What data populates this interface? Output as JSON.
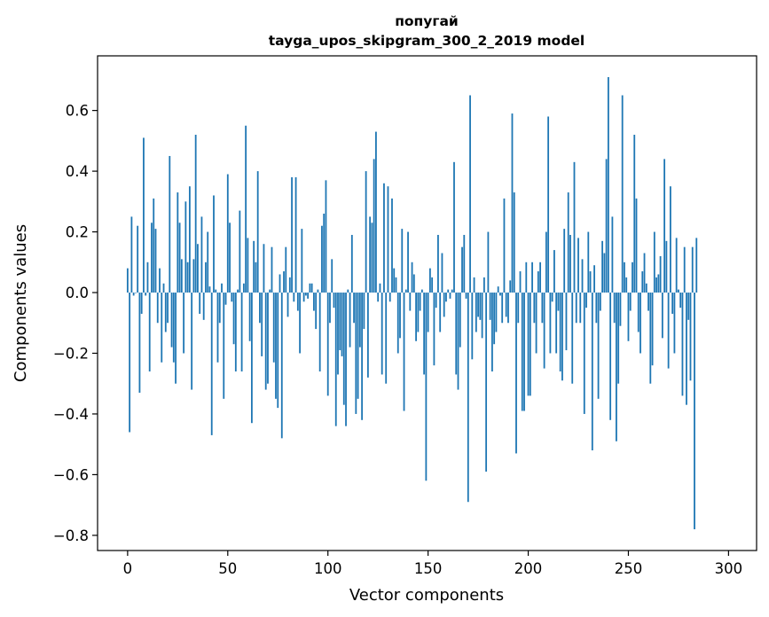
{
  "chart_data": {
    "type": "bar",
    "title": "попугай",
    "subtitle": "tayga_upos_skipgram_300_2_2019 model",
    "xlabel": "Vector components",
    "ylabel": "Components values",
    "xlim": [
      -15,
      314
    ],
    "ylim": [
      -0.85,
      0.78
    ],
    "xticks": [
      0,
      50,
      100,
      150,
      200,
      250,
      300
    ],
    "xtick_labels": [
      "0",
      "50",
      "100",
      "150",
      "200",
      "250",
      "300"
    ],
    "yticks": [
      0.6,
      0.4,
      0.2,
      0.0,
      -0.2,
      -0.4,
      -0.6,
      -0.8
    ],
    "ytick_labels": [
      "0.6",
      "0.4",
      "0.2",
      "0.0",
      "−0.2",
      "−0.4",
      "−0.6",
      "−0.8"
    ],
    "grid": false,
    "bar_color": "#1f77b4",
    "values": [
      0.08,
      -0.46,
      0.25,
      -0.01,
      0.0,
      0.22,
      -0.33,
      -0.07,
      0.51,
      -0.01,
      0.1,
      -0.26,
      0.23,
      0.31,
      0.21,
      -0.1,
      0.08,
      -0.23,
      0.03,
      -0.13,
      -0.1,
      0.45,
      -0.18,
      -0.23,
      -0.3,
      0.33,
      0.23,
      0.11,
      -0.2,
      0.3,
      0.1,
      0.35,
      -0.32,
      0.11,
      0.52,
      0.16,
      -0.07,
      0.25,
      -0.09,
      0.1,
      0.2,
      0.02,
      -0.47,
      0.32,
      0.01,
      -0.23,
      -0.1,
      0.03,
      -0.35,
      -0.04,
      0.39,
      0.23,
      -0.03,
      -0.17,
      -0.26,
      0.01,
      0.27,
      -0.26,
      0.03,
      0.55,
      0.18,
      -0.16,
      -0.43,
      0.17,
      0.1,
      0.4,
      -0.1,
      -0.21,
      0.16,
      -0.32,
      -0.3,
      0.01,
      0.15,
      -0.23,
      -0.35,
      -0.38,
      0.06,
      -0.48,
      0.07,
      0.15,
      -0.08,
      0.05,
      0.38,
      -0.03,
      0.38,
      -0.06,
      -0.2,
      0.21,
      -0.03,
      -0.01,
      -0.02,
      0.03,
      0.03,
      -0.06,
      -0.12,
      0.01,
      -0.26,
      0.22,
      0.26,
      0.37,
      -0.34,
      -0.1,
      0.11,
      -0.05,
      -0.44,
      -0.27,
      -0.19,
      -0.21,
      -0.37,
      -0.44,
      0.01,
      -0.18,
      0.19,
      -0.1,
      -0.4,
      -0.35,
      -0.18,
      -0.42,
      -0.12,
      0.4,
      -0.28,
      0.25,
      0.23,
      0.44,
      0.53,
      -0.03,
      0.03,
      -0.27,
      0.36,
      -0.3,
      0.35,
      -0.03,
      0.31,
      0.08,
      0.05,
      -0.2,
      -0.15,
      0.21,
      -0.39,
      0.01,
      0.2,
      -0.06,
      0.1,
      0.06,
      -0.16,
      -0.13,
      -0.06,
      0.01,
      -0.27,
      -0.62,
      -0.13,
      0.08,
      0.05,
      -0.24,
      -0.05,
      0.19,
      -0.13,
      0.13,
      -0.08,
      -0.03,
      0.01,
      -0.02,
      0.01,
      0.43,
      -0.27,
      -0.32,
      -0.18,
      0.15,
      0.19,
      -0.02,
      -0.69,
      0.65,
      -0.22,
      0.05,
      -0.13,
      -0.08,
      -0.09,
      -0.15,
      0.05,
      -0.59,
      0.2,
      -0.09,
      -0.26,
      -0.17,
      -0.13,
      0.02,
      -0.01,
      -0.1,
      0.31,
      -0.08,
      -0.1,
      0.04,
      0.59,
      0.33,
      -0.53,
      -0.1,
      0.07,
      -0.39,
      -0.39,
      0.1,
      -0.34,
      -0.34,
      0.1,
      -0.1,
      -0.2,
      0.07,
      0.1,
      -0.1,
      -0.25,
      0.2,
      0.58,
      -0.2,
      -0.03,
      0.14,
      -0.2,
      -0.06,
      -0.26,
      -0.29,
      0.21,
      -0.19,
      0.33,
      0.19,
      -0.3,
      0.43,
      -0.1,
      0.18,
      -0.1,
      0.11,
      -0.4,
      -0.05,
      0.2,
      0.07,
      -0.52,
      0.09,
      -0.1,
      -0.35,
      -0.06,
      0.17,
      0.13,
      0.44,
      0.71,
      -0.42,
      0.25,
      -0.1,
      -0.49,
      -0.3,
      -0.11,
      0.65,
      0.1,
      0.05,
      -0.16,
      -0.06,
      0.1,
      0.52,
      0.31,
      -0.13,
      -0.2,
      0.07,
      0.13,
      0.03,
      -0.06,
      -0.3,
      -0.24,
      0.2,
      0.05,
      0.06,
      0.12,
      -0.15,
      0.44,
      0.17,
      -0.25,
      0.35,
      -0.07,
      -0.2,
      0.18,
      0.01,
      -0.05,
      -0.34,
      0.15,
      -0.37,
      -0.09,
      -0.29,
      0.15,
      -0.78,
      0.18
    ]
  }
}
